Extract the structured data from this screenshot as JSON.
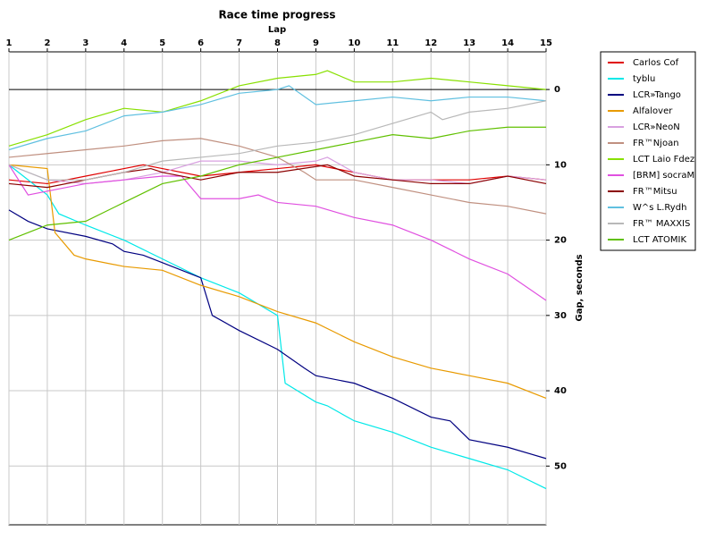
{
  "chart_data": {
    "type": "line",
    "title": "Race time progress",
    "x_label": "Lap",
    "y_label": "Gap, seconds",
    "xlim": [
      1,
      15
    ],
    "xticks": [
      1,
      2,
      3,
      4,
      5,
      6,
      7,
      8,
      9,
      10,
      11,
      12,
      13,
      14,
      15
    ],
    "ylim": [
      -5,
      57.8
    ],
    "y_inverted": true,
    "yticks": [
      0,
      10,
      20,
      30,
      40,
      50
    ],
    "grid": true,
    "legend": "right",
    "series": [
      {
        "name": "Carlos Cof",
        "color": "#e00000",
        "x": [
          1,
          2,
          3,
          4,
          4.5,
          5,
          6,
          7,
          8,
          9,
          10,
          11,
          12,
          13,
          14,
          15
        ],
        "values": [
          12,
          12.5,
          11.5,
          10.5,
          10,
          10.5,
          11.5,
          11,
          10.5,
          10,
          11,
          12,
          12,
          12,
          11.5,
          12
        ]
      },
      {
        "name": "tyblu",
        "color": "#00e8e8",
        "x": [
          1,
          2,
          2.3,
          3,
          4,
          5,
          6,
          7,
          8,
          8.2,
          9,
          9.3,
          10,
          11,
          12,
          13,
          14,
          15
        ],
        "values": [
          10,
          14,
          16.5,
          18,
          20,
          22.5,
          25,
          27,
          30,
          39,
          41.5,
          42,
          44,
          45.5,
          47.5,
          49,
          50.5,
          53
        ]
      },
      {
        "name": "LCR»Tango",
        "color": "#000080",
        "x": [
          1,
          1.5,
          2,
          3,
          3.7,
          4,
          4.5,
          5,
          6,
          6.3,
          7,
          8,
          8.7,
          9,
          10,
          11,
          12,
          12.5,
          13,
          14,
          15
        ],
        "values": [
          16,
          17.5,
          18.5,
          19.5,
          20.5,
          21.5,
          22,
          23,
          25,
          30,
          32,
          34.5,
          37,
          38,
          39,
          41,
          43.5,
          44,
          46.5,
          47.5,
          49
        ]
      },
      {
        "name": "Alfalover",
        "color": "#e89a00",
        "x": [
          1,
          2,
          2.2,
          2.7,
          3,
          4,
          5,
          6,
          7,
          8,
          9,
          10,
          11,
          12,
          13,
          14,
          15
        ],
        "values": [
          10,
          10.5,
          19,
          22,
          22.5,
          23.5,
          24,
          26,
          27.5,
          29.5,
          31,
          33.5,
          35.5,
          37,
          38,
          39,
          41
        ]
      },
      {
        "name": "LCR»NeoN",
        "color": "#d8a0e0",
        "x": [
          1,
          2,
          3,
          4,
          5,
          6,
          7,
          8,
          9,
          9.3,
          10,
          11,
          12,
          13,
          14,
          15
        ],
        "values": [
          10,
          12,
          12.5,
          12,
          11,
          9.5,
          9.5,
          10,
          9.5,
          9,
          11,
          12,
          12,
          12.5,
          11.5,
          12
        ]
      },
      {
        "name": "FR™Njoan",
        "color": "#c09080",
        "x": [
          1,
          2,
          3,
          4,
          5,
          6,
          7,
          8,
          8.7,
          9,
          10,
          11,
          12,
          13,
          14,
          15
        ],
        "values": [
          9,
          8.5,
          8,
          7.5,
          6.8,
          6.5,
          7.5,
          9,
          11,
          12,
          12,
          13,
          14,
          15,
          15.5,
          16.5
        ]
      },
      {
        "name": "LCT Laio Fdez",
        "color": "#88e000",
        "x": [
          1,
          2,
          3,
          4,
          5,
          6,
          7,
          8,
          9,
          9.3,
          10,
          11,
          12,
          13,
          14,
          15
        ],
        "values": [
          7.5,
          6,
          4,
          2.5,
          3,
          1.5,
          -0.5,
          -1.5,
          -2,
          -2.5,
          -1,
          -1,
          -1.5,
          -1,
          -0.5,
          0
        ]
      },
      {
        "name": "[BRM] socraM",
        "color": "#e050e0",
        "x": [
          1,
          1.5,
          2,
          3,
          4,
          5,
          5.5,
          6,
          7,
          7.5,
          8,
          9,
          10,
          11,
          12,
          13,
          14,
          15
        ],
        "values": [
          10,
          14,
          13.5,
          12.5,
          12,
          11.5,
          11.5,
          14.5,
          14.5,
          14,
          15,
          15.5,
          17,
          18,
          20,
          22.5,
          24.5,
          28
        ]
      },
      {
        "name": "FR™Mitsu",
        "color": "#8b0000",
        "x": [
          1,
          2,
          3,
          4,
          4.7,
          5,
          6,
          7,
          8,
          9.3,
          10,
          11,
          12,
          13,
          14,
          15
        ],
        "values": [
          12.5,
          13,
          12,
          11,
          10.5,
          11,
          12,
          11,
          11,
          10,
          11.5,
          12,
          12.5,
          12.5,
          11.5,
          12.5
        ]
      },
      {
        "name": "W^s L.Rydh",
        "color": "#60c0e0",
        "x": [
          1,
          2,
          3,
          4,
          5,
          6,
          7,
          8,
          8.3,
          9,
          10,
          11,
          12,
          13,
          14,
          15
        ],
        "values": [
          8,
          6.5,
          5.5,
          3.5,
          3,
          2,
          0.5,
          0,
          -0.5,
          2,
          1.5,
          1,
          1.5,
          1,
          1,
          1.5
        ]
      },
      {
        "name": "FR™ MAXXIS",
        "color": "#b8b8b8",
        "x": [
          1,
          2,
          3,
          4,
          5,
          6,
          7,
          8,
          9,
          10,
          11,
          12,
          12.3,
          13,
          14,
          15
        ],
        "values": [
          10,
          12,
          12,
          11,
          9.5,
          9,
          8.5,
          7.5,
          7,
          6,
          4.5,
          3,
          4,
          3,
          2.5,
          1.5
        ]
      },
      {
        "name": "LCT ATOMIK",
        "color": "#60c000",
        "x": [
          1,
          2,
          3,
          4,
          5,
          6,
          7,
          8,
          9,
          10,
          11,
          12,
          13,
          14,
          15
        ],
        "values": [
          20,
          18,
          17.5,
          15,
          12.5,
          11.5,
          10,
          9,
          8,
          7,
          6,
          6.5,
          5.5,
          5,
          5
        ]
      }
    ]
  }
}
